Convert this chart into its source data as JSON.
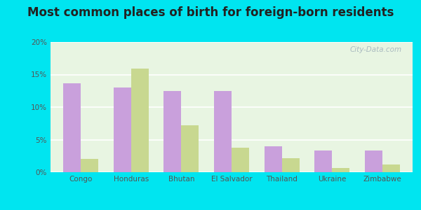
{
  "title": "Most common places of birth for foreign-born residents",
  "categories": [
    "Congo",
    "Honduras",
    "Bhutan",
    "El Salvador",
    "Thailand",
    "Ukraine",
    "Zimbabwe"
  ],
  "zip_values": [
    13.7,
    13.0,
    12.5,
    12.5,
    4.0,
    3.3,
    3.3
  ],
  "ky_values": [
    2.0,
    15.9,
    7.2,
    3.8,
    2.1,
    0.6,
    1.2
  ],
  "zip_color": "#c9a0dc",
  "ky_color": "#c8d890",
  "background_outer": "#00e5f0",
  "background_inner": "#e8f5e2",
  "ylim": [
    0,
    20
  ],
  "yticks": [
    0,
    5,
    10,
    15,
    20
  ],
  "ytick_labels": [
    "0%",
    "5%",
    "10%",
    "15%",
    "20%"
  ],
  "title_fontsize": 12,
  "bar_width": 0.35
}
